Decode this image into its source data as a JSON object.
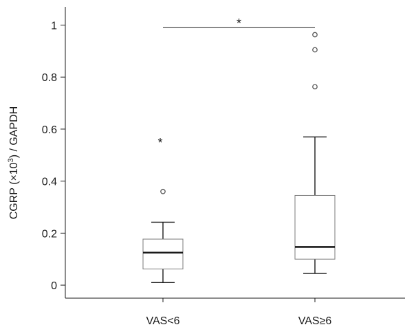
{
  "chart_data": {
    "type": "box",
    "ylabel_main": "CGRP (×10",
    "ylabel_sup": "3",
    "ylabel_tail": ") / GAPDH",
    "ylim": [
      -0.05,
      1.07
    ],
    "yticks": [
      0,
      0.2,
      0.4,
      0.6,
      0.8,
      1
    ],
    "ytick_labels": [
      "0",
      "0.2",
      "0.4",
      "0.6",
      "0.8",
      "1"
    ],
    "categories": [
      "VAS<6",
      "VAS≥6"
    ],
    "groups": [
      {
        "category": "VAS<6",
        "whisker_low": 0.01,
        "q1": 0.062,
        "median": 0.125,
        "q3": 0.177,
        "whisker_high": 0.242,
        "outliers": [
          0.36
        ],
        "extremes": [
          0.555
        ]
      },
      {
        "category": "VAS≥6",
        "whisker_low": 0.045,
        "q1": 0.1,
        "median": 0.147,
        "q3": 0.345,
        "whisker_high": 0.57,
        "outliers": [
          0.763,
          0.905,
          0.963
        ],
        "extremes": []
      }
    ],
    "significance": {
      "from": "VAS<6",
      "to": "VAS≥6",
      "y": 0.99,
      "label": "*"
    },
    "extreme_marker": "*",
    "colors": {
      "box_fill": "#ffffff",
      "box_stroke": "#7a7a7a",
      "median": "#1a1a1a",
      "whisker": "#1a1a1a",
      "axis": "#1a1a1a",
      "outlier": "#555555"
    },
    "grid": false
  }
}
